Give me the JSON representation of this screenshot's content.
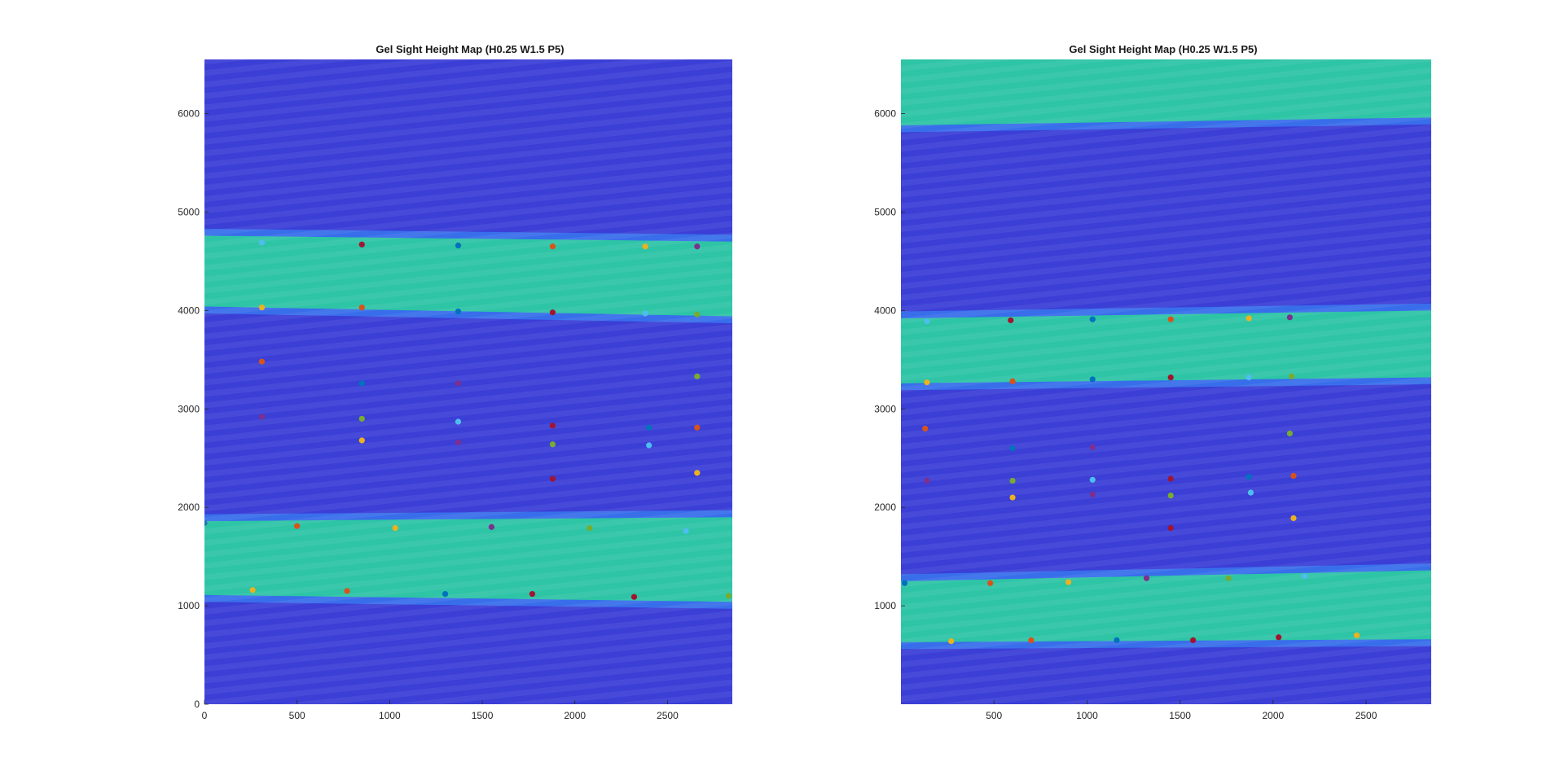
{
  "chart_data": [
    {
      "type": "heatmap",
      "title": "Gel Sight Height Map (H0.25 W1.5 P5)",
      "xlim": [
        0,
        2850
      ],
      "ylim": [
        0,
        6550
      ],
      "xticks": [
        0,
        500,
        1000,
        1500,
        2000,
        2500
      ],
      "yticks": [
        0,
        1000,
        2000,
        3000,
        4000,
        5000,
        6000
      ],
      "grid": false,
      "colormap": "parula",
      "raised_bands": [
        {
          "y_left": [
            1110,
            1860
          ],
          "y_right": [
            1040,
            1900
          ]
        },
        {
          "y_left": [
            4040,
            4760
          ],
          "y_right": [
            3940,
            4700
          ]
        }
      ],
      "points": [
        {
          "x": 0,
          "y": 1840,
          "c": "#1f77b4"
        },
        {
          "x": 260,
          "y": 1160,
          "c": "#edb120"
        },
        {
          "x": 310,
          "y": 4690,
          "c": "#4dbeee"
        },
        {
          "x": 310,
          "y": 4030,
          "c": "#edb120"
        },
        {
          "x": 310,
          "y": 3480,
          "c": "#d95319"
        },
        {
          "x": 310,
          "y": 2920,
          "c": "#7e2f8e"
        },
        {
          "x": 500,
          "y": 1810,
          "c": "#d95319"
        },
        {
          "x": 770,
          "y": 1150,
          "c": "#d95319"
        },
        {
          "x": 850,
          "y": 4670,
          "c": "#a2142f"
        },
        {
          "x": 850,
          "y": 4030,
          "c": "#d95319"
        },
        {
          "x": 850,
          "y": 3260,
          "c": "#0072bd"
        },
        {
          "x": 850,
          "y": 2900,
          "c": "#77ac30"
        },
        {
          "x": 850,
          "y": 2680,
          "c": "#edb120"
        },
        {
          "x": 1030,
          "y": 1790,
          "c": "#edb120"
        },
        {
          "x": 1300,
          "y": 1120,
          "c": "#0072bd"
        },
        {
          "x": 1370,
          "y": 4660,
          "c": "#0072bd"
        },
        {
          "x": 1370,
          "y": 3990,
          "c": "#0072bd"
        },
        {
          "x": 1370,
          "y": 3260,
          "c": "#7e2f8e"
        },
        {
          "x": 1370,
          "y": 2870,
          "c": "#4dbeee"
        },
        {
          "x": 1370,
          "y": 2660,
          "c": "#7e2f8e"
        },
        {
          "x": 1550,
          "y": 1800,
          "c": "#7e2f8e"
        },
        {
          "x": 1770,
          "y": 1120,
          "c": "#a2142f"
        },
        {
          "x": 1880,
          "y": 4650,
          "c": "#d95319"
        },
        {
          "x": 1880,
          "y": 3980,
          "c": "#a2142f"
        },
        {
          "x": 1880,
          "y": 2830,
          "c": "#a2142f"
        },
        {
          "x": 1880,
          "y": 2640,
          "c": "#77ac30"
        },
        {
          "x": 1880,
          "y": 2290,
          "c": "#a2142f"
        },
        {
          "x": 2080,
          "y": 1790,
          "c": "#77ac30"
        },
        {
          "x": 2320,
          "y": 1090,
          "c": "#a2142f"
        },
        {
          "x": 2380,
          "y": 4650,
          "c": "#edb120"
        },
        {
          "x": 2380,
          "y": 3970,
          "c": "#4dbeee"
        },
        {
          "x": 2400,
          "y": 2810,
          "c": "#0072bd"
        },
        {
          "x": 2400,
          "y": 2630,
          "c": "#4dbeee"
        },
        {
          "x": 2600,
          "y": 1760,
          "c": "#4dbeee"
        },
        {
          "x": 2660,
          "y": 4650,
          "c": "#7e2f8e"
        },
        {
          "x": 2660,
          "y": 3960,
          "c": "#77ac30"
        },
        {
          "x": 2660,
          "y": 3330,
          "c": "#77ac30"
        },
        {
          "x": 2660,
          "y": 2810,
          "c": "#d95319"
        },
        {
          "x": 2660,
          "y": 2350,
          "c": "#edb120"
        },
        {
          "x": 2830,
          "y": 1100,
          "c": "#77ac30"
        }
      ]
    },
    {
      "type": "heatmap",
      "title": "Gel Sight Height Map (H0.25 W1.5 P5)",
      "xlim": [
        0,
        2850
      ],
      "ylim": [
        0,
        6550
      ],
      "xticks": [
        500,
        1000,
        1500,
        2000,
        2500
      ],
      "yticks": [
        1000,
        2000,
        3000,
        4000,
        5000,
        6000
      ],
      "grid": false,
      "colormap": "parula",
      "raised_bands": [
        {
          "y_left": [
            630,
            1250
          ],
          "y_right": [
            660,
            1360
          ]
        },
        {
          "y_left": [
            3260,
            3920
          ],
          "y_right": [
            3320,
            4000
          ]
        },
        {
          "y_left": [
            5880,
            6550
          ],
          "y_right": [
            5960,
            6550
          ]
        }
      ],
      "points": [
        {
          "x": 20,
          "y": 1230,
          "c": "#0072bd"
        },
        {
          "x": 140,
          "y": 3270,
          "c": "#edb120"
        },
        {
          "x": 140,
          "y": 3890,
          "c": "#4dbeee"
        },
        {
          "x": 130,
          "y": 2800,
          "c": "#d95319"
        },
        {
          "x": 140,
          "y": 2270,
          "c": "#7e2f8e"
        },
        {
          "x": 270,
          "y": 640,
          "c": "#edb120"
        },
        {
          "x": 480,
          "y": 1230,
          "c": "#d95319"
        },
        {
          "x": 590,
          "y": 3900,
          "c": "#a2142f"
        },
        {
          "x": 600,
          "y": 3280,
          "c": "#d95319"
        },
        {
          "x": 600,
          "y": 2600,
          "c": "#0072bd"
        },
        {
          "x": 600,
          "y": 2270,
          "c": "#77ac30"
        },
        {
          "x": 600,
          "y": 2100,
          "c": "#edb120"
        },
        {
          "x": 700,
          "y": 650,
          "c": "#d95319"
        },
        {
          "x": 900,
          "y": 1240,
          "c": "#edb120"
        },
        {
          "x": 1030,
          "y": 3910,
          "c": "#0072bd"
        },
        {
          "x": 1030,
          "y": 3300,
          "c": "#0072bd"
        },
        {
          "x": 1030,
          "y": 2610,
          "c": "#7e2f8e"
        },
        {
          "x": 1030,
          "y": 2280,
          "c": "#4dbeee"
        },
        {
          "x": 1030,
          "y": 2130,
          "c": "#7e2f8e"
        },
        {
          "x": 1160,
          "y": 650,
          "c": "#0072bd"
        },
        {
          "x": 1320,
          "y": 1280,
          "c": "#7e2f8e"
        },
        {
          "x": 1450,
          "y": 3910,
          "c": "#d95319"
        },
        {
          "x": 1450,
          "y": 3320,
          "c": "#a2142f"
        },
        {
          "x": 1450,
          "y": 2290,
          "c": "#a2142f"
        },
        {
          "x": 1450,
          "y": 2120,
          "c": "#77ac30"
        },
        {
          "x": 1450,
          "y": 1790,
          "c": "#a2142f"
        },
        {
          "x": 1570,
          "y": 650,
          "c": "#a2142f"
        },
        {
          "x": 1760,
          "y": 1280,
          "c": "#77ac30"
        },
        {
          "x": 1870,
          "y": 3920,
          "c": "#edb120"
        },
        {
          "x": 1870,
          "y": 3320,
          "c": "#4dbeee"
        },
        {
          "x": 1870,
          "y": 2310,
          "c": "#0072bd"
        },
        {
          "x": 1880,
          "y": 2150,
          "c": "#4dbeee"
        },
        {
          "x": 2030,
          "y": 680,
          "c": "#a2142f"
        },
        {
          "x": 2170,
          "y": 1300,
          "c": "#4dbeee"
        },
        {
          "x": 2090,
          "y": 3930,
          "c": "#7e2f8e"
        },
        {
          "x": 2100,
          "y": 3330,
          "c": "#77ac30"
        },
        {
          "x": 2090,
          "y": 2750,
          "c": "#77ac30"
        },
        {
          "x": 2110,
          "y": 2320,
          "c": "#d95319"
        },
        {
          "x": 2110,
          "y": 1890,
          "c": "#edb120"
        },
        {
          "x": 2450,
          "y": 700,
          "c": "#edb120"
        }
      ]
    }
  ]
}
